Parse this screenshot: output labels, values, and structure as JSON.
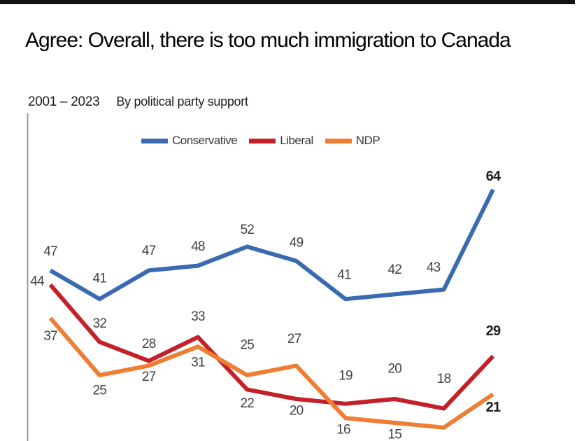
{
  "header": {
    "title": "Agree: Overall, there is too much immigration to Canada",
    "date_range": "2001 – 2023",
    "note": "By political party support"
  },
  "chart_data": {
    "type": "line",
    "title": "Agree: Overall, there is too much immigration to Canada",
    "period": "2001 – 2023",
    "subtitle": "By political party support",
    "n_points": 10,
    "x_tick_labels_visible": false,
    "grid": false,
    "legend_position": "top",
    "ylim_approx": [
      10,
      70
    ],
    "value_unit": "percent agreeing",
    "series": [
      {
        "name": "Conservative",
        "color": "#3a6ab0",
        "values": [
          47,
          41,
          47,
          48,
          52,
          49,
          41,
          42,
          43,
          64
        ],
        "point_labels": [
          "47",
          "41",
          "47",
          "48",
          "52",
          "49",
          "41",
          "42",
          "43",
          "64"
        ]
      },
      {
        "name": "Liberal",
        "color": "#c32127",
        "values": [
          44,
          32,
          28,
          33,
          22,
          20,
          19,
          20,
          18,
          29
        ],
        "point_labels": [
          "44",
          "32",
          "28",
          "33",
          "22",
          "20",
          "19",
          "20",
          "18",
          "29"
        ]
      },
      {
        "name": "NDP",
        "color": "#ef7d33",
        "values": [
          37,
          25,
          27,
          31,
          25,
          27,
          16,
          15,
          14,
          21
        ],
        "point_labels": [
          "37",
          "25",
          "27",
          "31",
          "25",
          "27",
          "16",
          "15",
          "",
          "21"
        ]
      }
    ],
    "colors": {
      "label": "#414141",
      "emphasis_label": "#1f1f1f",
      "axis": "#9a9a9a",
      "topbar": "#111111",
      "background": "#ffffff"
    }
  }
}
